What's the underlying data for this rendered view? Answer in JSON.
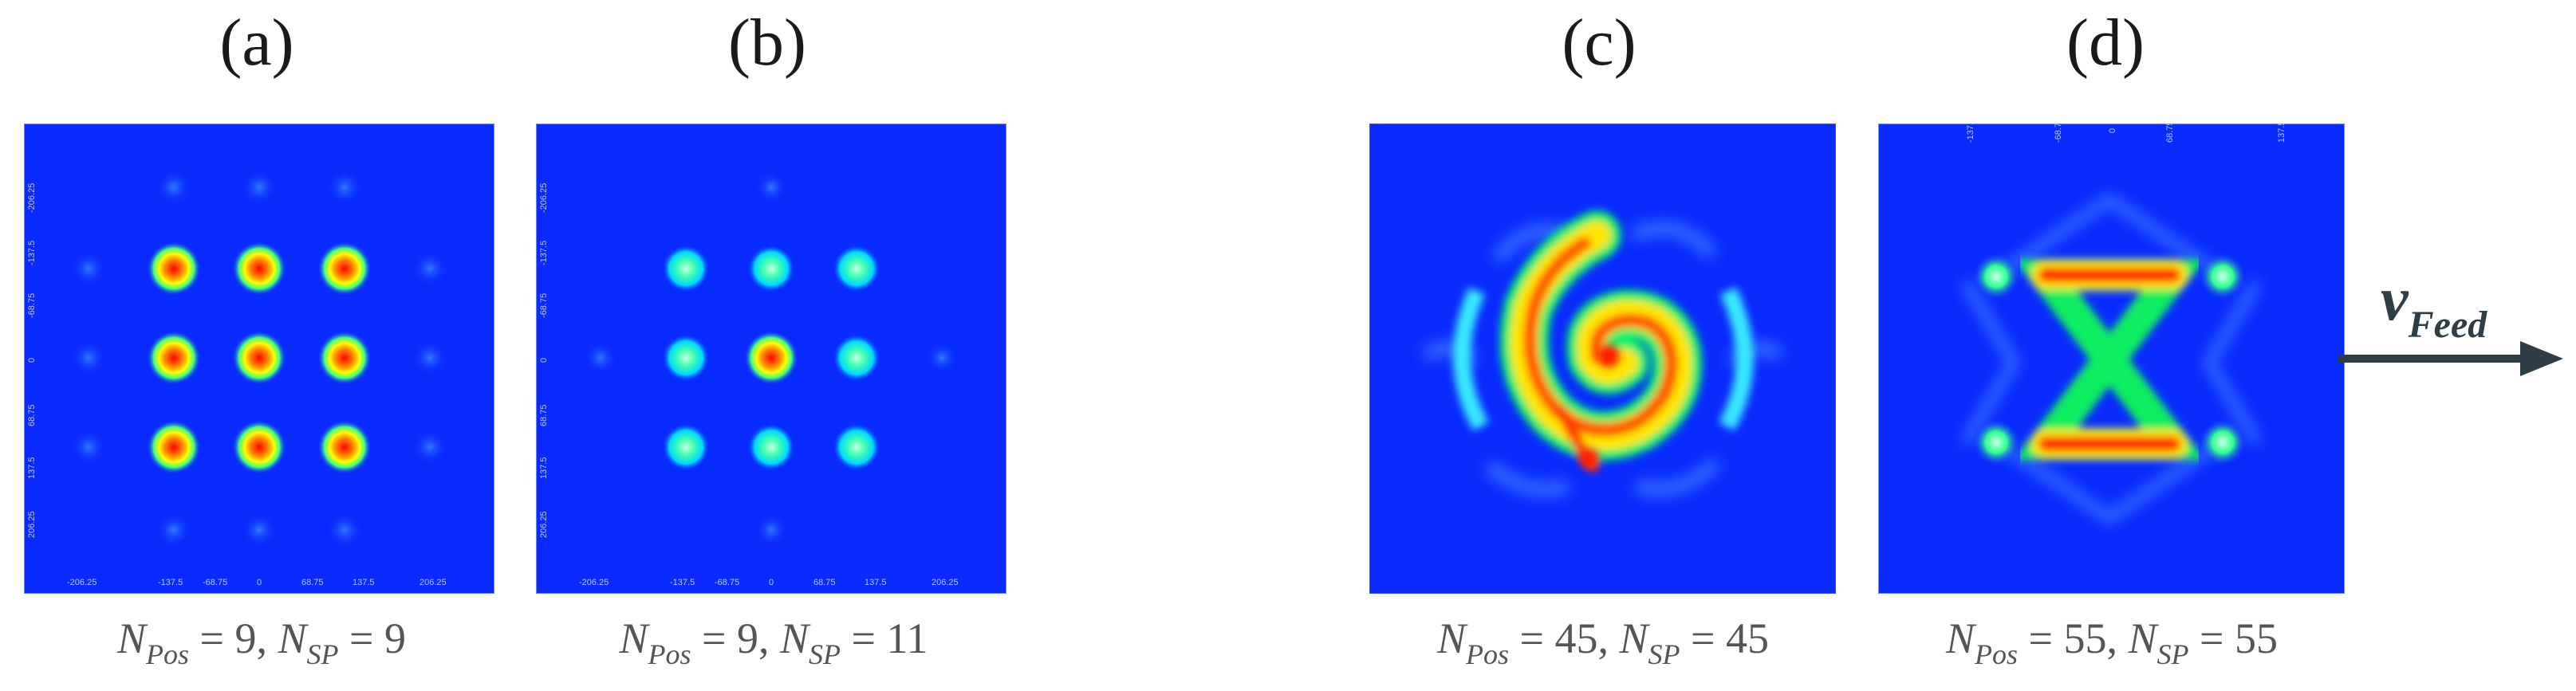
{
  "panels": [
    {
      "label": "(a)",
      "caption": {
        "pos": "9",
        "sp": "9"
      }
    },
    {
      "label": "(b)",
      "caption": {
        "pos": "9",
        "sp": "11"
      }
    },
    {
      "label": "(c)",
      "caption": {
        "pos": "45",
        "sp": "45"
      }
    },
    {
      "label": "(d)",
      "caption": {
        "pos": "55",
        "sp": "55"
      }
    }
  ],
  "caption_symbols": {
    "n": "N",
    "pos_sub": "Pos",
    "sp_sub": "SP",
    "eq": " = ",
    "sep": ", "
  },
  "axis_ticks": [
    "-206.25",
    "-137.5",
    "-68.75",
    "0",
    "68.75",
    "137.5",
    "206.25"
  ],
  "feed": {
    "symbol": "v",
    "subscript": "Feed"
  },
  "colors": {
    "background": "#0a2bff",
    "hot": "#ff0000",
    "mid": "#ffff00",
    "low": "#00ff80"
  }
}
